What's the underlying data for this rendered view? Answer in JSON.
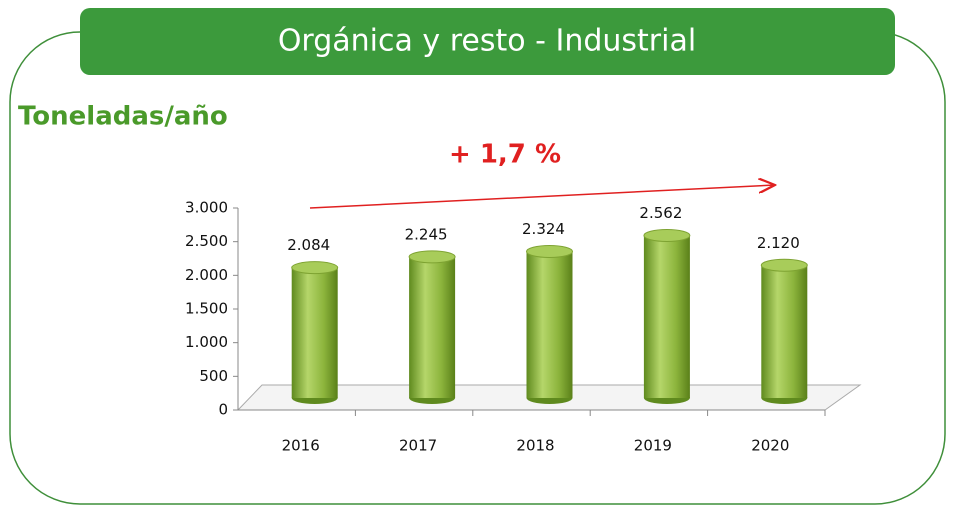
{
  "chart_data": {
    "type": "bar",
    "title": "Orgánica y resto - Industrial",
    "subtitle": "Toneladas/año",
    "annotation": "+ 1,7 %",
    "categories": [
      "2016",
      "2017",
      "2018",
      "2019",
      "2020"
    ],
    "values": [
      2084,
      2245,
      2324,
      2562,
      2120
    ],
    "value_labels": [
      "2.084",
      "2.245",
      "2.324",
      "2.562",
      "2.120"
    ],
    "color": "#8cb43c",
    "ylim": [
      0,
      3000
    ],
    "yticks": [
      0,
      500,
      {
        "value": 1000,
        "label": "1.000"
      },
      {
        "value": 1500,
        "label": "1.500"
      },
      {
        "value": 2000,
        "label": "2.000"
      },
      {
        "value": 2500,
        "label": "2.500"
      },
      {
        "value": 3000,
        "label": "3.000"
      }
    ],
    "grid": false
  }
}
